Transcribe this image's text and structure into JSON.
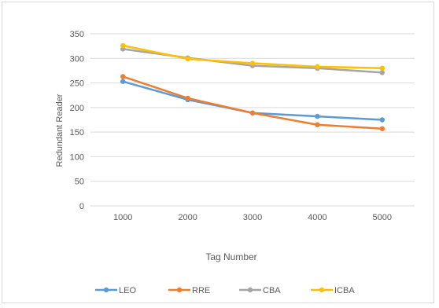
{
  "chart_data": {
    "type": "line",
    "title": "",
    "xlabel": "Tag Number",
    "ylabel": "Redundant Reader",
    "categories": [
      "1000",
      "2000",
      "3000",
      "4000",
      "5000"
    ],
    "ylim": [
      0,
      350
    ],
    "yticks": [
      0,
      50,
      100,
      150,
      200,
      250,
      300,
      350
    ],
    "grid": "horizontal",
    "legend_position": "bottom",
    "series": [
      {
        "name": "LEO",
        "color": "#5b9bd5",
        "values": [
          253,
          216,
          189,
          182,
          175
        ]
      },
      {
        "name": "RRE",
        "color": "#ed7d31",
        "values": [
          263,
          219,
          189,
          165,
          157
        ]
      },
      {
        "name": "CBA",
        "color": "#a5a5a5",
        "values": [
          319,
          301,
          285,
          280,
          271
        ]
      },
      {
        "name": "ICBA",
        "color": "#ffc000",
        "values": [
          326,
          299,
          290,
          283,
          280
        ]
      }
    ]
  }
}
